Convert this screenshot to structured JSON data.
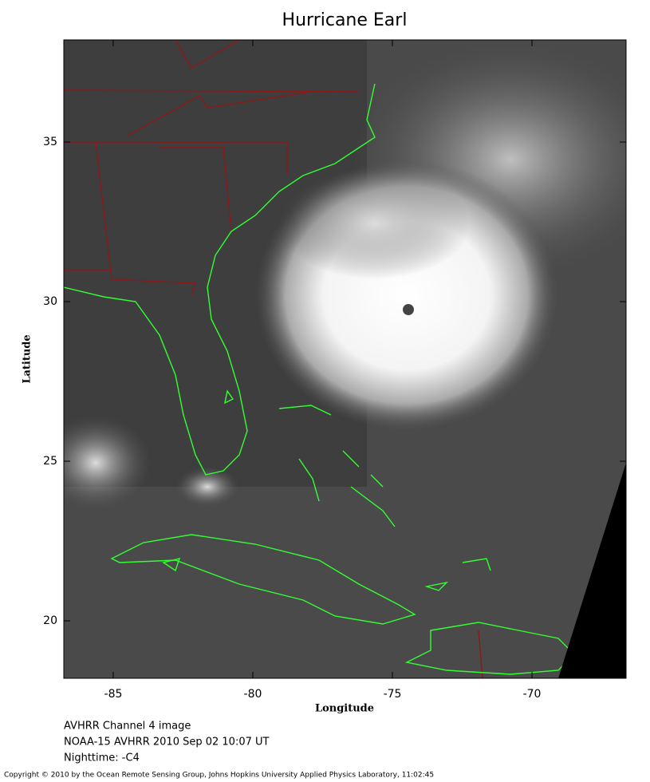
{
  "chart_data": {
    "type": "map",
    "title": "Hurricane Earl",
    "x_label": "Longitude",
    "y_label": "Latitude",
    "xlim": [
      -86.77,
      -66.63
    ],
    "ylim": [
      18.2,
      38.2
    ],
    "xticks": [
      -85,
      -80,
      -75,
      -70
    ],
    "yticks": [
      20,
      25,
      30,
      35
    ],
    "notes": [
      "AVHRR Channel 4 image",
      "NOAA-15 AVHRR 2010 Sep 02 10:07 UT",
      "Nighttime: -C4"
    ],
    "copyright": "Copyright © 2010 by the Ocean Remote Sensing Group, Johns Hopkins University Applied Physics Laboratory, 11:02:45"
  }
}
